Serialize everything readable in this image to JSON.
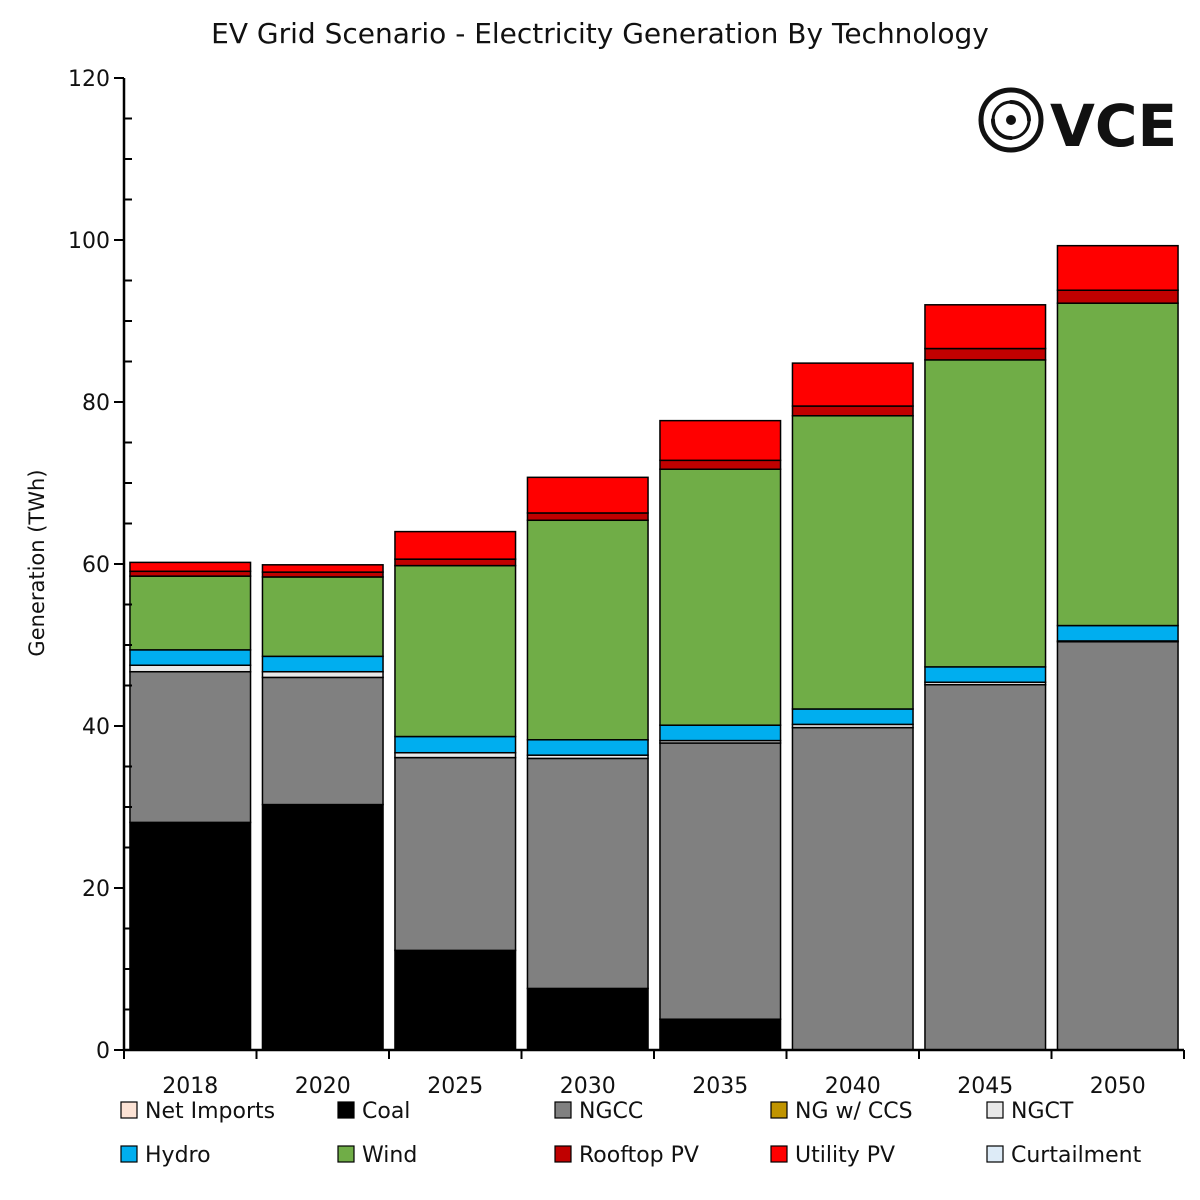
{
  "chart_data": {
    "type": "bar",
    "stacked": true,
    "title": "EV Grid Scenario - Electricity Generation By Technology",
    "ylabel": "Generation (TWh)",
    "xlabel": "",
    "ylim": [
      0,
      120
    ],
    "y_ticks": [
      "0",
      "20",
      "40",
      "60",
      "80",
      "100",
      "120"
    ],
    "categories": [
      "2018",
      "2020",
      "2025",
      "2030",
      "2035",
      "2040",
      "2045",
      "2050"
    ],
    "legend_position": "bottom",
    "series": [
      {
        "name": "Net Imports",
        "color": "#FDE3D5",
        "values": [
          0,
          0,
          0,
          0,
          0,
          0,
          0,
          0
        ]
      },
      {
        "name": "Coal",
        "color": "#000000",
        "values": [
          28.1,
          30.3,
          12.3,
          7.6,
          3.8,
          0,
          0,
          0
        ]
      },
      {
        "name": "NGCC",
        "color": "#808080",
        "values": [
          18.6,
          15.7,
          23.8,
          28.4,
          34.1,
          39.8,
          45.1,
          50.4
        ]
      },
      {
        "name": "NG w/ CCS",
        "color": "#C09400",
        "values": [
          0,
          0,
          0,
          0,
          0,
          0,
          0,
          0
        ]
      },
      {
        "name": "NGCT",
        "color": "#E8E8E8",
        "values": [
          0.8,
          0.7,
          0.6,
          0.4,
          0.3,
          0.4,
          0.3,
          0.1
        ]
      },
      {
        "name": "Hydro",
        "color": "#00AEEF",
        "values": [
          1.9,
          1.9,
          2.0,
          1.9,
          1.9,
          1.9,
          1.9,
          1.9
        ]
      },
      {
        "name": "Wind",
        "color": "#70AD47",
        "values": [
          9.1,
          9.8,
          21.1,
          27.1,
          31.6,
          36.2,
          37.9,
          39.8
        ]
      },
      {
        "name": "Rooftop PV",
        "color": "#C00000",
        "values": [
          0.6,
          0.6,
          0.8,
          0.9,
          1.1,
          1.2,
          1.4,
          1.6
        ]
      },
      {
        "name": "Utility PV",
        "color": "#FF0000",
        "values": [
          1.1,
          0.9,
          3.4,
          4.4,
          4.9,
          5.3,
          5.4,
          5.5
        ]
      },
      {
        "name": "Curtailment",
        "color": "#DDEBF7",
        "values": [
          0,
          0,
          0,
          0,
          0,
          0,
          0,
          0
        ]
      }
    ]
  },
  "logo": {
    "text": "VCE",
    "icon": "swirl-logo-icon"
  }
}
